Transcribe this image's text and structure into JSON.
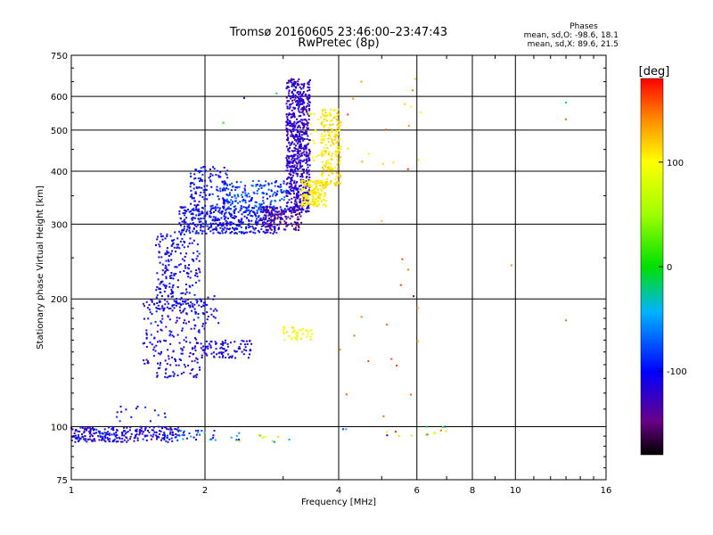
{
  "chart_data": {
    "type": "scatter",
    "title": "Tromsø 20160605 23:46:00–23:47:43",
    "subtitle": "RwPretec (8p)",
    "phases_title": "Phases",
    "phases_line_o": "mean, sd,O:  -98.6, 18.1",
    "phases_line_x": "mean, sd,X:   89.6, 21.5",
    "xlabel": "Frequency [MHz]",
    "ylabel": "Stationary phase Virtual Height [km]",
    "x_scale": "log",
    "y_scale": "log",
    "xlim": [
      1,
      16
    ],
    "ylim": [
      75,
      750
    ],
    "x_ticks": [
      {
        "value": 1,
        "label": "1"
      },
      {
        "value": 2,
        "label": "2"
      },
      {
        "value": 4,
        "label": "4"
      },
      {
        "value": 6,
        "label": "6"
      },
      {
        "value": 8,
        "label": "8"
      },
      {
        "value": 10,
        "label": "10"
      },
      {
        "value": 16,
        "label": "16"
      }
    ],
    "y_ticks": [
      {
        "value": 75,
        "label": "75"
      },
      {
        "value": 100,
        "label": "100"
      },
      {
        "value": 200,
        "label": "200"
      },
      {
        "value": 300,
        "label": "300"
      },
      {
        "value": 400,
        "label": "400"
      },
      {
        "value": 500,
        "label": "500"
      },
      {
        "value": 600,
        "label": "600"
      },
      {
        "value": 750,
        "label": "750"
      }
    ],
    "grid": true,
    "colorbar": {
      "label": "[deg]",
      "min": -180,
      "max": 180,
      "ticks": [
        {
          "value": 100,
          "label": "100"
        },
        {
          "value": 0,
          "label": "0"
        },
        {
          "value": -100,
          "label": "-100"
        }
      ]
    },
    "clusters": [
      {
        "fmin": 1.0,
        "fmax": 1.75,
        "hmin": 92,
        "hmax": 100,
        "phase_min": -140,
        "phase_max": -80,
        "count": 260
      },
      {
        "fmin": 1.75,
        "fmax": 2.4,
        "hmin": 93,
        "hmax": 98,
        "phase_min": -120,
        "phase_max": -20,
        "count": 30
      },
      {
        "fmin": 1.25,
        "fmax": 1.75,
        "hmin": 102,
        "hmax": 112,
        "phase_min": -120,
        "phase_max": -80,
        "count": 15
      },
      {
        "fmin": 1.45,
        "fmax": 1.95,
        "hmin": 130,
        "hmax": 200,
        "phase_min": -135,
        "phase_max": -85,
        "count": 200
      },
      {
        "fmin": 1.55,
        "fmax": 1.95,
        "hmin": 185,
        "hmax": 290,
        "phase_min": -125,
        "phase_max": -85,
        "count": 230
      },
      {
        "fmin": 1.95,
        "fmax": 2.55,
        "hmin": 145,
        "hmax": 160,
        "phase_min": -130,
        "phase_max": -90,
        "count": 90
      },
      {
        "fmin": 1.95,
        "fmax": 2.15,
        "hmin": 170,
        "hmax": 205,
        "phase_min": -120,
        "phase_max": -90,
        "count": 30
      },
      {
        "fmin": 1.75,
        "fmax": 2.9,
        "hmin": 285,
        "hmax": 330,
        "phase_min": -125,
        "phase_max": -80,
        "count": 420
      },
      {
        "fmin": 1.85,
        "fmax": 2.25,
        "hmin": 330,
        "hmax": 410,
        "phase_min": -120,
        "phase_max": -80,
        "count": 120
      },
      {
        "fmin": 2.2,
        "fmax": 3.1,
        "hmin": 320,
        "hmax": 380,
        "phase_min": -110,
        "phase_max": -60,
        "count": 190
      },
      {
        "fmin": 2.7,
        "fmax": 3.3,
        "hmin": 290,
        "hmax": 330,
        "phase_min": -160,
        "phase_max": -120,
        "count": 140
      },
      {
        "fmin": 3.05,
        "fmax": 3.45,
        "hmin": 320,
        "hmax": 660,
        "phase_min": -140,
        "phase_max": -100,
        "count": 700
      },
      {
        "fmin": 3.3,
        "fmax": 3.75,
        "hmin": 330,
        "hmax": 380,
        "phase_min": 95,
        "phase_max": 120,
        "count": 170
      },
      {
        "fmin": 3.65,
        "fmax": 4.05,
        "hmin": 370,
        "hmax": 560,
        "phase_min": 95,
        "phase_max": 125,
        "count": 200
      },
      {
        "fmin": 3.4,
        "fmax": 3.75,
        "hmin": 420,
        "hmax": 560,
        "phase_min": 80,
        "phase_max": 110,
        "count": 25
      },
      {
        "fmin": 3.0,
        "fmax": 3.5,
        "hmin": 160,
        "hmax": 172,
        "phase_min": 80,
        "phase_max": 110,
        "count": 45
      },
      {
        "fmin": 4.0,
        "fmax": 7.0,
        "hmin": 95,
        "hmax": 102,
        "phase_min": -130,
        "phase_max": 170,
        "count": 15
      },
      {
        "fmin": 4.0,
        "fmax": 6.2,
        "hmin": 104,
        "hmax": 250,
        "phase_min": 130,
        "phase_max": 170,
        "count": 15
      },
      {
        "fmin": 4.1,
        "fmax": 6.2,
        "hmin": 400,
        "hmax": 660,
        "phase_min": 90,
        "phase_max": 170,
        "count": 15
      },
      {
        "fmin": 2.3,
        "fmax": 3.1,
        "hmin": 92,
        "hmax": 96,
        "phase_min": -120,
        "phase_max": 130,
        "count": 10
      }
    ],
    "points": [
      {
        "f": 2.45,
        "h": 595,
        "phase": -110
      },
      {
        "f": 2.9,
        "h": 610,
        "phase": -20
      },
      {
        "f": 2.2,
        "h": 520,
        "phase": 10
      },
      {
        "f": 13.0,
        "h": 580,
        "phase": -20
      },
      {
        "f": 13.0,
        "h": 530,
        "phase": 150
      },
      {
        "f": 9.8,
        "h": 240,
        "phase": 140
      },
      {
        "f": 13.0,
        "h": 178,
        "phase": 150
      },
      {
        "f": 5.9,
        "h": 203,
        "phase": -140
      },
      {
        "f": 5.0,
        "h": 305,
        "phase": 120
      },
      {
        "f": 4.5,
        "h": 650,
        "phase": 130
      },
      {
        "f": 5.95,
        "h": 660,
        "phase": 120
      },
      {
        "f": 6.8,
        "h": 98,
        "phase": 150
      }
    ]
  }
}
